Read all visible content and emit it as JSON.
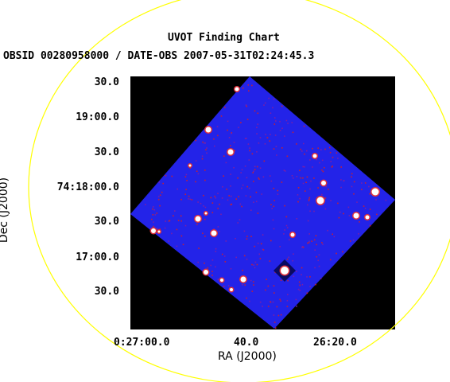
{
  "title": "UVOT Finding Chart",
  "subtitle": "OBSID 00280958000 / DATE-OBS 2007-05-31T02:24:45.3",
  "x_axis_label": "RA (J2000)",
  "y_axis_label": "Dec (J2000)",
  "x_ticks": [
    "0:27:00.0",
    "40.0",
    "26:20.0"
  ],
  "y_ticks": [
    "30.0",
    "19:00.0",
    "30.0",
    "74:18:00.0",
    "30.0",
    "17:00.0",
    "30.0"
  ],
  "colors": {
    "background": "#ffffff",
    "panel": "#000000",
    "image_field": "#2323e8",
    "source": "#ffffff",
    "noise": "#c0203a",
    "circle": "#ffff00"
  }
}
